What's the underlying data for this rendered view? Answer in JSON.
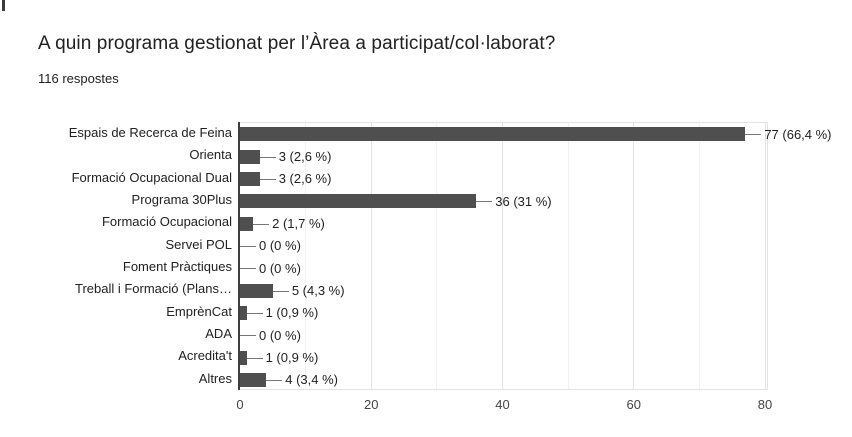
{
  "chart_data": {
    "type": "bar",
    "orientation": "horizontal",
    "title": "A quin programa gestionat per l’Àrea a participat/col·laborat?",
    "subtitle": "116 respostes",
    "total_responses": 116,
    "categories": [
      "Espais de Recerca de Feina",
      "Orienta",
      "Formació Ocupacional Dual",
      "Programa 30Plus",
      "Formació Ocupacional",
      "Servei POL",
      "Foment Pràctiques",
      "Treball i Formació (Plans…",
      "EmprènCat",
      "ADA",
      "Acredita't",
      "Altres"
    ],
    "values": [
      77,
      3,
      3,
      36,
      2,
      0,
      0,
      5,
      1,
      0,
      1,
      4
    ],
    "value_labels": [
      "77 (66,4 %)",
      "3 (2,6 %)",
      "3 (2,6 %)",
      "36 (31 %)",
      "2 (1,7 %)",
      "0 (0 %)",
      "0 (0 %)",
      "5 (4,3 %)",
      "1 (0,9 %)",
      "0 (0 %)",
      "1 (0,9 %)",
      "4 (3,4 %)"
    ],
    "xticks": [
      0,
      20,
      40,
      60,
      80
    ],
    "xlim": [
      0,
      80.5
    ],
    "gridlines_major": [
      20,
      40,
      60,
      80
    ],
    "gridlines_minor": [
      10,
      30,
      50,
      70
    ],
    "grid": true,
    "legend": "none",
    "bar_color": "#4f4f4f",
    "whisker_color": "#757575",
    "axis_line_color": "#3d3d3d",
    "grid_major_color": "#e3e3e3",
    "grid_minor_color": "#f2f2f2",
    "tick_label_color": "#444444",
    "text_color": "#212121"
  }
}
